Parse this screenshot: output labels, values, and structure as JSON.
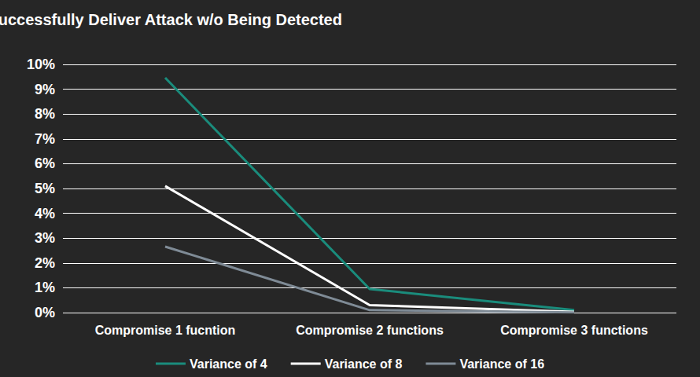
{
  "chart_data": {
    "type": "line",
    "title": "Probability of Attackers Successfully Deliver Attack w/o Being Detected",
    "categories": [
      "Compromise 1 fucntion",
      "Compromise 2 functions",
      "Compromise 3 functions"
    ],
    "series": [
      {
        "name": "Variance of 4",
        "color": "#1a8c7c",
        "values": [
          9.46,
          0.95,
          0.1
        ]
      },
      {
        "name": "Variance of 8",
        "color": "#ffffff",
        "values": [
          5.1,
          0.3,
          0.03
        ]
      },
      {
        "name": "Variance of 16",
        "color": "#7f8b96",
        "values": [
          2.66,
          0.1,
          0.01
        ]
      }
    ],
    "ylim": [
      0,
      10
    ],
    "yticks": [
      {
        "value": 0,
        "label": "0%"
      },
      {
        "value": 1,
        "label": "1%"
      },
      {
        "value": 2,
        "label": "2%"
      },
      {
        "value": 3,
        "label": "3%"
      },
      {
        "value": 4,
        "label": "4%"
      },
      {
        "value": 5,
        "label": "5%"
      },
      {
        "value": 6,
        "label": "6%"
      },
      {
        "value": 7,
        "label": "7%"
      },
      {
        "value": 8,
        "label": "8%"
      },
      {
        "value": 9,
        "label": "9%"
      },
      {
        "value": 10,
        "label": "10%"
      }
    ],
    "grid": true,
    "legend": "bottom"
  }
}
